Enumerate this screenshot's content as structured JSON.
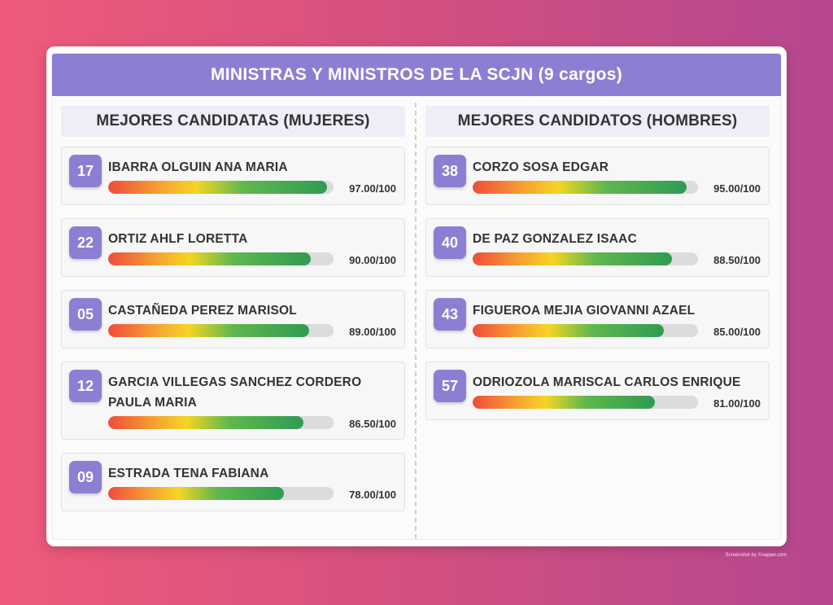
{
  "title": "MINISTRAS Y MINISTROS DE LA SCJN (9 cargos)",
  "women": {
    "heading": "MEJORES CANDIDATAS (MUJERES)",
    "items": [
      {
        "number": "17",
        "name": "IBARRA OLGUIN ANA MARIA",
        "score": 97.0,
        "score_text": "97.00/100"
      },
      {
        "number": "22",
        "name": "ORTIZ AHLF LORETTA",
        "score": 90.0,
        "score_text": "90.00/100"
      },
      {
        "number": "05",
        "name": "CASTAÑEDA PEREZ MARISOL",
        "score": 89.0,
        "score_text": "89.00/100"
      },
      {
        "number": "12",
        "name": "GARCIA VILLEGAS SANCHEZ CORDERO PAULA MARIA",
        "score": 86.5,
        "score_text": "86.50/100"
      },
      {
        "number": "09",
        "name": "ESTRADA TENA FABIANA",
        "score": 78.0,
        "score_text": "78.00/100"
      }
    ]
  },
  "men": {
    "heading": "MEJORES CANDIDATOS (HOMBRES)",
    "items": [
      {
        "number": "38",
        "name": "CORZO SOSA EDGAR",
        "score": 95.0,
        "score_text": "95.00/100"
      },
      {
        "number": "40",
        "name": "DE PAZ GONZALEZ ISAAC",
        "score": 88.5,
        "score_text": "88.50/100"
      },
      {
        "number": "43",
        "name": "FIGUEROA MEJIA GIOVANNI AZAEL",
        "score": 85.0,
        "score_text": "85.00/100"
      },
      {
        "number": "57",
        "name": "ODRIOZOLA MARISCAL CARLOS ENRIQUE",
        "score": 81.0,
        "score_text": "81.00/100"
      }
    ]
  },
  "score_max": 100,
  "credit": "Screenshot by Xnapper.com",
  "colors": {
    "accent": "#8b7fd4",
    "bar_gradient": [
      "#ef4c3c",
      "#f7a232",
      "#f5d523",
      "#5fb84d",
      "#2f9b52"
    ],
    "track": "#dcdcdc"
  }
}
